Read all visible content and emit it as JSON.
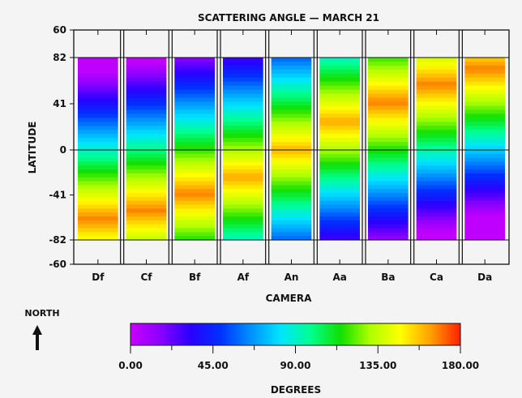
{
  "chart_data": {
    "type": "heatmap",
    "title": "SCATTERING ANGLE — MARCH 21",
    "xlabel": "CAMERA",
    "ylabel": "LATITUDE",
    "categories": [
      "Df",
      "Cf",
      "Bf",
      "Af",
      "An",
      "Aa",
      "Ba",
      "Ca",
      "Da"
    ],
    "y_ticks": [
      "60",
      "82",
      "41",
      "0",
      "-41",
      "-82",
      "-60"
    ],
    "colorbar": {
      "label": "DEGREES",
      "ticks": [
        "0.00",
        "45.00",
        "90.00",
        "135.00",
        "180.00"
      ],
      "range": [
        0,
        180
      ]
    },
    "hotspot_latitude": [
      -63,
      -55,
      -40,
      -25,
      0,
      25,
      42,
      58,
      72
    ],
    "hotspot_angle": [
      168,
      168,
      168,
      162,
      160,
      162,
      168,
      168,
      168
    ],
    "colors": {
      "stops": [
        "#c800ff",
        "#8a00ff",
        "#2a00ff",
        "#0030ff",
        "#0090ff",
        "#00e5ff",
        "#00ff90",
        "#10e000",
        "#b0ff00",
        "#ffff00",
        "#ffa000",
        "#ff2000"
      ]
    }
  },
  "legend": {
    "north_label": "NORTH"
  }
}
